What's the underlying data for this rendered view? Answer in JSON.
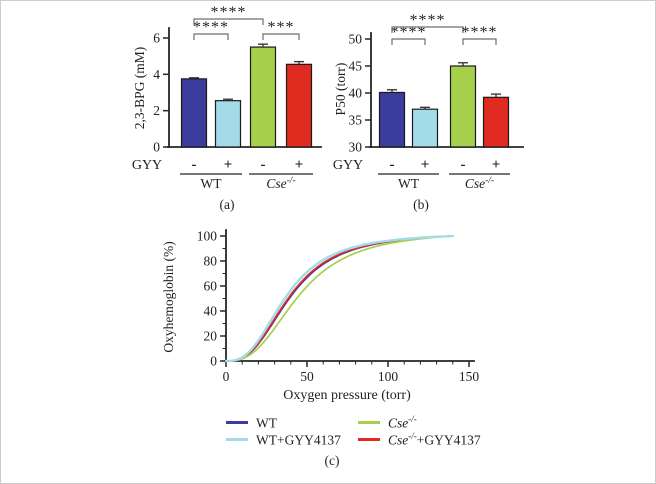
{
  "figure": {
    "colors": {
      "navy": "#3c3c9e",
      "cyan": "#a4dbe8",
      "green": "#a6d04c",
      "red": "#e02b20",
      "axis": "#262626",
      "bracket": "#6e6e6e"
    },
    "captions": {
      "a": "(a)",
      "b": "(b)",
      "c": "(c)"
    },
    "legend": {
      "items": [
        {
          "base": "WT",
          "sup": "",
          "rest": "",
          "color_key": "navy",
          "italic": false
        },
        {
          "base": "WT",
          "sup": "",
          "rest": "+GYY4137",
          "color_key": "cyan",
          "italic": false
        },
        {
          "base": "Cse",
          "sup": "-/-",
          "rest": "",
          "color_key": "green",
          "italic": true
        },
        {
          "base": "Cse",
          "sup": "-/-",
          "rest": "+GYY4137",
          "color_key": "red",
          "italic": true
        }
      ]
    }
  },
  "chart_data": [
    {
      "type": "bar",
      "panel": "a",
      "ylabel": "2,3-BPG (mM)",
      "ylim": [
        0,
        6.4
      ],
      "y_ticks": [
        0,
        2,
        4,
        6
      ],
      "row_label": "GYY",
      "categories": [
        "-",
        "+",
        "-",
        "+"
      ],
      "values": [
        3.75,
        2.55,
        5.5,
        4.55
      ],
      "errors": [
        0.06,
        0.08,
        0.16,
        0.15
      ],
      "color_keys": [
        "navy",
        "cyan",
        "green",
        "red"
      ],
      "groups": [
        {
          "base": "WT",
          "sup": "",
          "italic": false,
          "bars": [
            0,
            1
          ]
        },
        {
          "base": "Cse",
          "sup": "-/-",
          "italic": true,
          "bars": [
            2,
            3
          ]
        }
      ],
      "significance": [
        {
          "from": 0,
          "to": 1,
          "label": "****",
          "level": 1
        },
        {
          "from": 0,
          "to": 2,
          "label": "****",
          "level": 2
        },
        {
          "from": 2,
          "to": 3,
          "label": "***",
          "level": 1
        }
      ]
    },
    {
      "type": "bar",
      "panel": "b",
      "ylabel": "P50 (torr)",
      "ylim": [
        30,
        50.5
      ],
      "y_ticks": [
        30,
        35,
        40,
        45,
        50
      ],
      "row_label": "GYY",
      "categories": [
        "-",
        "+",
        "-",
        "+"
      ],
      "values": [
        40.1,
        37.0,
        45.0,
        39.2
      ],
      "errors": [
        0.5,
        0.35,
        0.6,
        0.6
      ],
      "color_keys": [
        "navy",
        "cyan",
        "green",
        "red"
      ],
      "groups": [
        {
          "base": "WT",
          "sup": "",
          "italic": false,
          "bars": [
            0,
            1
          ]
        },
        {
          "base": "Cse",
          "sup": "-/-",
          "italic": true,
          "bars": [
            2,
            3
          ]
        }
      ],
      "significance": [
        {
          "from": 0,
          "to": 1,
          "label": "****",
          "level": 1
        },
        {
          "from": 0,
          "to": 2,
          "label": "****",
          "level": 2
        },
        {
          "from": 2,
          "to": 3,
          "label": "****",
          "level": 1
        }
      ]
    },
    {
      "type": "line",
      "panel": "c",
      "xlabel": "Oxygen pressure (torr)",
      "ylabel": "Oxyhemoglobin (%)",
      "xlim": [
        0,
        155
      ],
      "ylim": [
        0,
        100
      ],
      "x_ticks": [
        0,
        50,
        100,
        150
      ],
      "y_ticks": [
        0,
        20,
        40,
        60,
        80,
        100
      ],
      "x_minor_ticks": [
        10,
        20,
        30,
        40,
        60,
        70,
        80,
        90,
        110,
        120,
        130,
        140
      ],
      "y_minor_ticks": [
        10,
        30,
        50,
        70,
        90
      ],
      "x_data_max": 140,
      "curve_model": "normalized_hill",
      "series": [
        {
          "name": "WT",
          "color_key": "navy",
          "p50": 40,
          "hill_n": 2.7
        },
        {
          "name": "WT+GYY4137",
          "color_key": "cyan",
          "p50": 37,
          "hill_n": 2.7
        },
        {
          "name": "Cse-/-",
          "color_key": "green",
          "p50": 45,
          "hill_n": 2.7
        },
        {
          "name": "Cse-/-+GYY4137",
          "color_key": "red",
          "p50": 39.2,
          "hill_n": 2.7
        }
      ]
    }
  ]
}
